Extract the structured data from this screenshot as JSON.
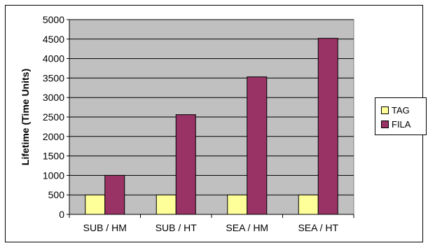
{
  "chart_data": {
    "type": "bar",
    "title": "",
    "xlabel": "",
    "ylabel": "Lifetime (Time Units)",
    "categories": [
      "SUB / HM",
      "SUB / HT",
      "SEA / HM",
      "SEA / HT"
    ],
    "series": [
      {
        "name": "TAG",
        "values": [
          500,
          500,
          500,
          500
        ],
        "color": "#ffff99"
      },
      {
        "name": "FILA",
        "values": [
          1000,
          2560,
          3530,
          4520
        ],
        "color": "#993366"
      }
    ],
    "ylim": [
      0,
      5000
    ],
    "yticks": [
      0,
      500,
      1000,
      1500,
      2000,
      2500,
      3000,
      3500,
      4000,
      4500,
      5000
    ],
    "grid": true,
    "plot_background": "#c0c0c0",
    "legend_position": "right"
  }
}
